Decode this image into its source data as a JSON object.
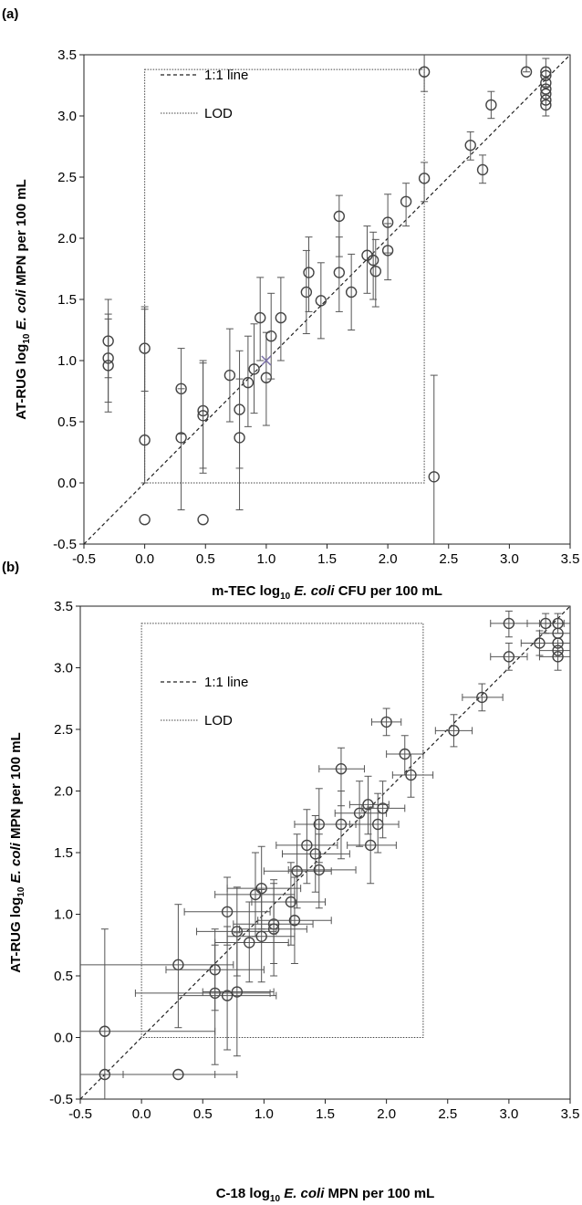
{
  "chart_data": [
    {
      "type": "scatter",
      "panel_label": "(a)",
      "xlabel": {
        "pre": "m-TEC log",
        "sub": "10",
        "mid": " ",
        "ital": "E. coli",
        "post": " CFU per 100 mL"
      },
      "ylabel": {
        "pre": "AT-RUG log",
        "sub": "10",
        "mid": " ",
        "ital": "E. coli",
        "post": " MPN per 100 mL"
      },
      "xlim": [
        -0.5,
        3.5
      ],
      "ylim": [
        -0.5,
        3.5
      ],
      "xticks": [
        "-0.5",
        "0.0",
        "0.5",
        "1.0",
        "1.5",
        "2.0",
        "2.5",
        "3.0",
        "3.5"
      ],
      "yticks": [
        "-0.5",
        "0.0",
        "0.5",
        "1.0",
        "1.5",
        "2.0",
        "2.5",
        "3.0",
        "3.5"
      ],
      "grid": false,
      "legend_position": "top-left",
      "legend": [
        {
          "label": "1:1 line",
          "style": "dashed"
        },
        {
          "label": "LOD",
          "style": "dotted"
        }
      ],
      "lod_box": {
        "x": [
          0.0,
          2.3
        ],
        "y": [
          0.0,
          3.38
        ]
      },
      "marker_x_point": {
        "x": 1.0,
        "y": 1.0
      },
      "points": [
        {
          "x": -0.3,
          "y": 1.16,
          "ylo": 0.86,
          "yhi": 1.5
        },
        {
          "x": -0.3,
          "y": 1.02,
          "ylo": 0.66,
          "yhi": 1.38
        },
        {
          "x": -0.3,
          "y": 0.96,
          "ylo": 0.58,
          "yhi": 1.34
        },
        {
          "x": 0.0,
          "y": 1.1,
          "ylo": 0.75,
          "yhi": 1.44
        },
        {
          "x": 0.0,
          "y": 0.35,
          "ylo": 0.0,
          "yhi": 1.42
        },
        {
          "x": 0.0,
          "y": -0.3
        },
        {
          "x": 0.3,
          "y": 0.77,
          "ylo": 0.4,
          "yhi": 1.1
        },
        {
          "x": 0.3,
          "y": 0.37,
          "ylo": -0.22,
          "yhi": 0.77
        },
        {
          "x": 0.48,
          "y": 0.59,
          "ylo": 0.12,
          "yhi": 1.0
        },
        {
          "x": 0.48,
          "y": 0.55,
          "ylo": 0.08,
          "yhi": 0.98
        },
        {
          "x": 0.48,
          "y": -0.3
        },
        {
          "x": 0.7,
          "y": 0.88,
          "ylo": 0.5,
          "yhi": 1.26
        },
        {
          "x": 0.78,
          "y": 0.6,
          "ylo": 0.12,
          "yhi": 1.08
        },
        {
          "x": 0.78,
          "y": 0.37,
          "ylo": -0.22,
          "yhi": 0.85
        },
        {
          "x": 0.85,
          "y": 0.82,
          "ylo": 0.46,
          "yhi": 1.2
        },
        {
          "x": 0.9,
          "y": 0.93,
          "ylo": 0.57,
          "yhi": 1.3
        },
        {
          "x": 0.95,
          "y": 1.35,
          "ylo": 1.0,
          "yhi": 1.68
        },
        {
          "x": 1.0,
          "y": 0.86,
          "ylo": 0.47,
          "yhi": 1.23
        },
        {
          "x": 1.04,
          "y": 1.2,
          "ylo": 0.85,
          "yhi": 1.55
        },
        {
          "x": 1.12,
          "y": 1.35,
          "ylo": 1.0,
          "yhi": 1.68
        },
        {
          "x": 1.33,
          "y": 1.56,
          "ylo": 1.22,
          "yhi": 1.9
        },
        {
          "x": 1.35,
          "y": 1.72,
          "ylo": 1.4,
          "yhi": 2.01
        },
        {
          "x": 1.45,
          "y": 1.49,
          "ylo": 1.18,
          "yhi": 1.8
        },
        {
          "x": 1.6,
          "y": 2.18,
          "ylo": 1.85,
          "yhi": 2.35
        },
        {
          "x": 1.6,
          "y": 1.72,
          "ylo": 1.4,
          "yhi": 2.01
        },
        {
          "x": 1.7,
          "y": 1.56,
          "ylo": 1.25,
          "yhi": 1.87
        },
        {
          "x": 1.83,
          "y": 1.86,
          "ylo": 1.55,
          "yhi": 2.1
        },
        {
          "x": 1.88,
          "y": 1.82,
          "ylo": 1.5,
          "yhi": 2.05
        },
        {
          "x": 1.9,
          "y": 1.73,
          "ylo": 1.44,
          "yhi": 1.99
        },
        {
          "x": 2.0,
          "y": 2.13,
          "ylo": 1.88,
          "yhi": 2.36
        },
        {
          "x": 2.0,
          "y": 1.9,
          "ylo": 1.66,
          "yhi": 2.12
        },
        {
          "x": 2.15,
          "y": 2.3,
          "ylo": 2.1,
          "yhi": 2.45
        },
        {
          "x": 2.3,
          "y": 3.36,
          "ylo": 3.2,
          "yhi": 3.52
        },
        {
          "x": 2.3,
          "y": 2.49,
          "ylo": 2.3,
          "yhi": 2.62
        },
        {
          "x": 2.38,
          "y": 0.05,
          "ylo": -0.5,
          "yhi": 0.88
        },
        {
          "x": 2.68,
          "y": 2.76,
          "ylo": 2.64,
          "yhi": 2.87
        },
        {
          "x": 2.78,
          "y": 2.56,
          "ylo": 2.45,
          "yhi": 2.68
        },
        {
          "x": 2.85,
          "y": 3.09,
          "ylo": 2.98,
          "yhi": 3.2
        },
        {
          "x": 3.14,
          "y": 3.36,
          "ylo": 3.36,
          "yhi": 3.5
        },
        {
          "x": 3.3,
          "y": 3.36,
          "ylo": 3.24,
          "yhi": 3.47
        },
        {
          "x": 3.3,
          "y": 3.33
        },
        {
          "x": 3.3,
          "y": 3.27
        },
        {
          "x": 3.3,
          "y": 3.22
        },
        {
          "x": 3.3,
          "y": 3.18
        },
        {
          "x": 3.3,
          "y": 3.13
        },
        {
          "x": 3.3,
          "y": 3.09,
          "ylo": 3.0,
          "yhi": 3.18
        }
      ]
    },
    {
      "type": "scatter",
      "panel_label": "(b)",
      "xlabel": {
        "pre": "C-18 log",
        "sub": "10",
        "mid": " ",
        "ital": "E. coli",
        "post": " MPN per 100 mL"
      },
      "ylabel": {
        "pre": "AT-RUG log",
        "sub": "10",
        "mid": " ",
        "ital": "E. coli",
        "post": " MPN per 100 mL"
      },
      "xlim": [
        -0.5,
        3.5
      ],
      "ylim": [
        -0.5,
        3.5
      ],
      "xticks": [
        "-0.5",
        "0.0",
        "0.5",
        "1.0",
        "1.5",
        "2.0",
        "2.5",
        "3.0",
        "3.5"
      ],
      "yticks": [
        "-0.5",
        "0.0",
        "0.5",
        "1.0",
        "1.5",
        "2.0",
        "2.5",
        "3.0",
        "3.5"
      ],
      "grid": false,
      "legend_position": "top-left",
      "legend": [
        {
          "label": "1:1 line",
          "style": "dashed"
        },
        {
          "label": "LOD",
          "style": "dotted"
        }
      ],
      "lod_box": {
        "x": [
          0.0,
          2.3
        ],
        "y": [
          0.0,
          3.36
        ]
      },
      "points": [
        {
          "x": -0.3,
          "y": 0.05,
          "ylo": -0.5,
          "yhi": 0.88,
          "xlo": -0.5,
          "xhi": 0.6
        },
        {
          "x": -0.3,
          "y": -0.3,
          "xlo": -0.5,
          "xhi": 0.6
        },
        {
          "x": 0.3,
          "y": 0.59,
          "ylo": 0.08,
          "yhi": 1.08,
          "xlo": -0.5,
          "xhi": 0.75
        },
        {
          "x": 0.3,
          "y": -0.3,
          "xlo": -0.15,
          "xhi": 0.78
        },
        {
          "x": 0.6,
          "y": 0.55,
          "ylo": 0.22,
          "yhi": 0.88,
          "xlo": 0.2,
          "xhi": 1.0
        },
        {
          "x": 0.6,
          "y": 0.36,
          "ylo": -0.22,
          "yhi": 0.75,
          "xlo": -0.05,
          "xhi": 1.05
        },
        {
          "x": 0.7,
          "y": 1.02,
          "ylo": 0.75,
          "yhi": 1.3,
          "xlo": 0.35,
          "xhi": 1.05
        },
        {
          "x": 0.7,
          "y": 0.34,
          "ylo": -0.1,
          "yhi": 0.9,
          "xlo": 0.3,
          "xhi": 1.1
        },
        {
          "x": 0.78,
          "y": 0.86,
          "ylo": 0.5,
          "yhi": 1.22,
          "xlo": 0.45,
          "xhi": 1.1
        },
        {
          "x": 0.78,
          "y": 0.37,
          "ylo": -0.15,
          "yhi": 0.85,
          "xlo": 0.5,
          "xhi": 1.08
        },
        {
          "x": 0.88,
          "y": 0.77,
          "ylo": 0.45,
          "yhi": 1.1,
          "xlo": 0.6,
          "xhi": 1.2
        },
        {
          "x": 0.93,
          "y": 1.16,
          "ylo": 0.82,
          "yhi": 1.5,
          "xlo": 0.6,
          "xhi": 1.25
        },
        {
          "x": 0.98,
          "y": 1.21,
          "ylo": 0.88,
          "yhi": 1.55,
          "xlo": 0.7,
          "xhi": 1.3
        },
        {
          "x": 0.98,
          "y": 0.82,
          "ylo": 0.45,
          "yhi": 1.2,
          "xlo": 0.7,
          "xhi": 1.25
        },
        {
          "x": 1.08,
          "y": 0.92,
          "ylo": 0.6,
          "yhi": 1.25,
          "xlo": 0.75,
          "xhi": 1.4
        },
        {
          "x": 1.08,
          "y": 0.88,
          "ylo": 0.5,
          "yhi": 1.28,
          "xlo": 0.8,
          "xhi": 1.35
        },
        {
          "x": 1.22,
          "y": 1.1,
          "ylo": 0.75,
          "yhi": 1.42,
          "xlo": 0.9,
          "xhi": 1.5
        },
        {
          "x": 1.25,
          "y": 0.95,
          "ylo": 0.6,
          "yhi": 1.3,
          "xlo": 0.95,
          "xhi": 1.55
        },
        {
          "x": 1.27,
          "y": 1.35,
          "ylo": 1.05,
          "yhi": 1.65,
          "xlo": 1.0,
          "xhi": 1.55
        },
        {
          "x": 1.35,
          "y": 1.56,
          "ylo": 1.25,
          "yhi": 1.85,
          "xlo": 1.1,
          "xhi": 1.6
        },
        {
          "x": 1.42,
          "y": 1.49,
          "ylo": 1.18,
          "yhi": 1.8,
          "xlo": 1.15,
          "xhi": 1.7
        },
        {
          "x": 1.45,
          "y": 1.73,
          "ylo": 1.42,
          "yhi": 2.02,
          "xlo": 1.25,
          "xhi": 1.7
        },
        {
          "x": 1.45,
          "y": 1.36,
          "ylo": 1.05,
          "yhi": 1.65,
          "xlo": 1.2,
          "xhi": 1.75
        },
        {
          "x": 1.63,
          "y": 2.18,
          "ylo": 1.88,
          "yhi": 2.35,
          "xlo": 1.45,
          "xhi": 1.82
        },
        {
          "x": 1.63,
          "y": 1.73,
          "ylo": 1.45,
          "yhi": 2.0,
          "xlo": 1.45,
          "xhi": 1.85
        },
        {
          "x": 1.78,
          "y": 1.82,
          "ylo": 1.55,
          "yhi": 2.08,
          "xlo": 1.58,
          "xhi": 2.0
        },
        {
          "x": 1.85,
          "y": 1.89,
          "ylo": 1.65,
          "yhi": 2.12,
          "xlo": 1.7,
          "xhi": 2.02
        },
        {
          "x": 1.87,
          "y": 1.56,
          "ylo": 1.25,
          "yhi": 1.87,
          "xlo": 1.68,
          "xhi": 2.08
        },
        {
          "x": 1.93,
          "y": 1.73,
          "ylo": 1.5,
          "yhi": 1.98,
          "xlo": 1.75,
          "xhi": 2.1
        },
        {
          "x": 1.97,
          "y": 1.86,
          "ylo": 1.62,
          "yhi": 2.08,
          "xlo": 1.8,
          "xhi": 2.15
        },
        {
          "x": 2.0,
          "y": 2.56,
          "ylo": 2.45,
          "yhi": 2.67,
          "xlo": 1.88,
          "xhi": 2.12
        },
        {
          "x": 2.15,
          "y": 2.3,
          "ylo": 2.13,
          "yhi": 2.45,
          "xlo": 2.0,
          "xhi": 2.3
        },
        {
          "x": 2.2,
          "y": 2.13,
          "ylo": 1.95,
          "yhi": 2.3,
          "xlo": 2.05,
          "xhi": 2.38
        },
        {
          "x": 2.55,
          "y": 2.49,
          "ylo": 2.36,
          "yhi": 2.62,
          "xlo": 2.4,
          "xhi": 2.7
        },
        {
          "x": 2.78,
          "y": 2.76,
          "ylo": 2.65,
          "yhi": 2.87,
          "xlo": 2.62,
          "xhi": 2.95
        },
        {
          "x": 3.0,
          "y": 3.36,
          "ylo": 3.25,
          "yhi": 3.46,
          "xlo": 2.85,
          "xhi": 3.15
        },
        {
          "x": 3.0,
          "y": 3.09,
          "ylo": 2.98,
          "yhi": 3.2,
          "xlo": 2.85,
          "xhi": 3.15
        },
        {
          "x": 3.25,
          "y": 3.2,
          "ylo": 3.1,
          "yhi": 3.3,
          "xlo": 3.1,
          "xhi": 3.4
        },
        {
          "x": 3.3,
          "y": 3.36,
          "ylo": 3.28,
          "yhi": 3.44,
          "xlo": 3.15,
          "xhi": 3.45
        },
        {
          "x": 3.4,
          "y": 3.36,
          "ylo": 3.28,
          "yhi": 3.44,
          "xlo": 3.25,
          "xhi": 3.5
        },
        {
          "x": 3.4,
          "y": 3.28,
          "xlo": 3.25,
          "xhi": 3.5
        },
        {
          "x": 3.4,
          "y": 3.2,
          "xlo": 3.25,
          "xhi": 3.5
        },
        {
          "x": 3.4,
          "y": 3.14,
          "xlo": 3.25,
          "xhi": 3.5
        },
        {
          "x": 3.4,
          "y": 3.09,
          "ylo": 2.98,
          "yhi": 3.2,
          "xlo": 3.25,
          "xhi": 3.5
        }
      ]
    }
  ]
}
